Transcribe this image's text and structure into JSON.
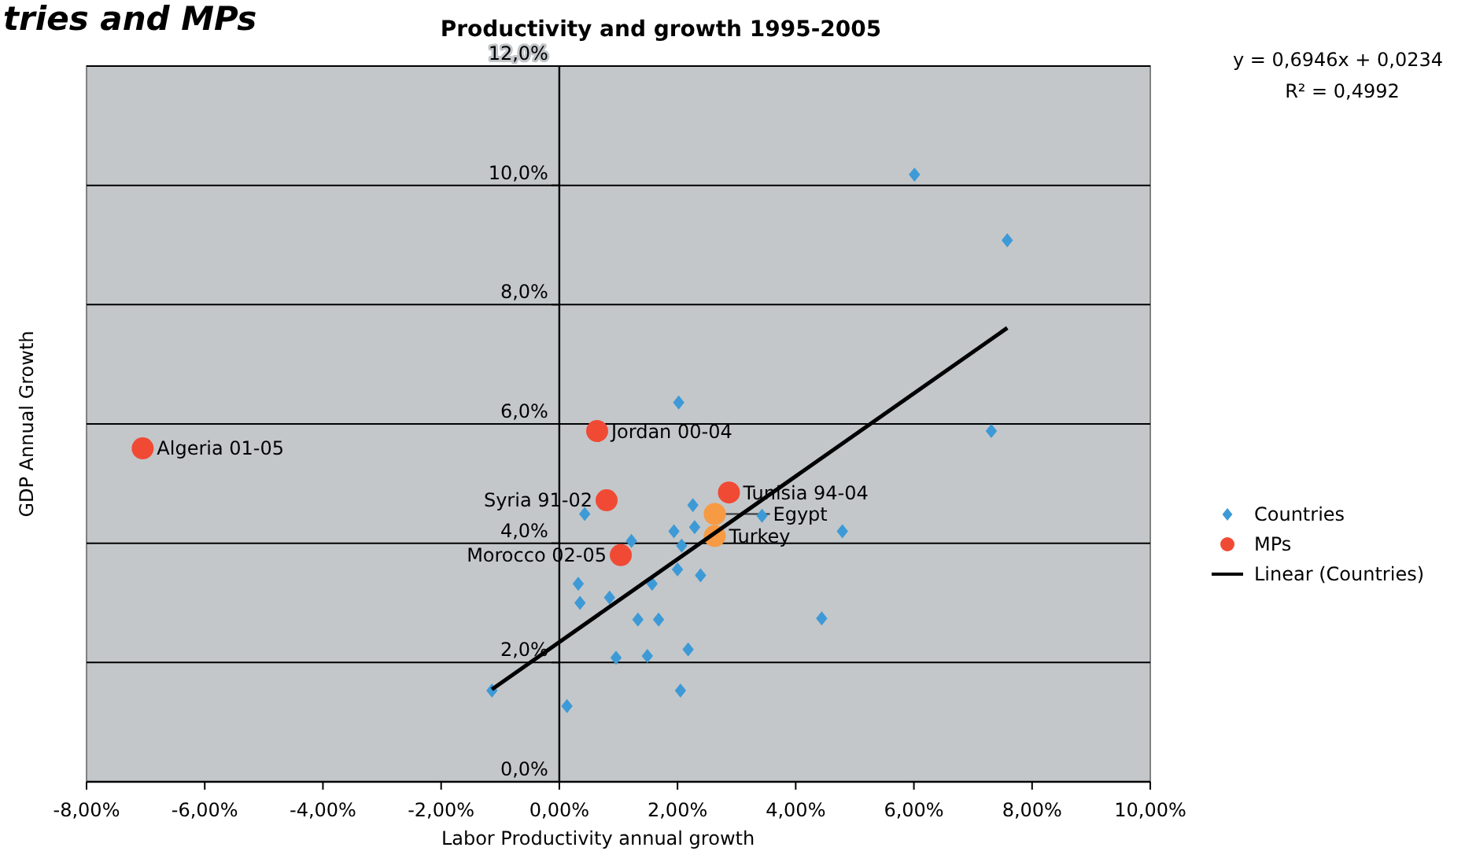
{
  "chart_data": {
    "type": "scatter",
    "title": "Productivity and growth 1995-2005",
    "xlabel": "Labor Productivity annual growth",
    "ylabel": "GDP Annual Growth",
    "xlim": [
      -8,
      10
    ],
    "ylim": [
      0,
      12
    ],
    "xticks": [
      {
        "value": -8,
        "label": "-8,00%"
      },
      {
        "value": -6,
        "label": "-6,00%"
      },
      {
        "value": -4,
        "label": "-4,00%"
      },
      {
        "value": -2,
        "label": "-2,00%"
      },
      {
        "value": 0,
        "label": "0,00%"
      },
      {
        "value": 2,
        "label": "2,00%"
      },
      {
        "value": 4,
        "label": "4,00%"
      },
      {
        "value": 6,
        "label": "6,00%"
      },
      {
        "value": 8,
        "label": "8,00%"
      },
      {
        "value": 10,
        "label": "10,00%"
      }
    ],
    "yticks": [
      {
        "value": 0,
        "label": "0,0%"
      },
      {
        "value": 2,
        "label": "2,0%"
      },
      {
        "value": 4,
        "label": "4,0%"
      },
      {
        "value": 6,
        "label": "6,0%"
      },
      {
        "value": 8,
        "label": "8,0%"
      },
      {
        "value": 10,
        "label": "10,0%"
      },
      {
        "value": 12,
        "label": "12,0%"
      }
    ],
    "grid": "y",
    "legend": "right",
    "series": [
      {
        "name": "Countries",
        "marker": "diamond",
        "color": "#3d9ad6",
        "x": [
          2.02,
          0.43,
          2.26,
          3.43,
          1.94,
          2.29,
          4.79,
          1.22,
          2.07,
          2.0,
          2.39,
          0.32,
          1.57,
          0.35,
          0.85,
          1.33,
          1.68,
          4.44,
          0.96,
          1.49,
          2.18,
          -1.14,
          2.05,
          0.13,
          6.01,
          7.58,
          7.31
        ],
        "values": [
          6.36,
          4.49,
          4.64,
          4.46,
          4.2,
          4.27,
          4.2,
          4.04,
          3.96,
          3.56,
          3.46,
          3.32,
          3.32,
          3.0,
          3.09,
          2.72,
          2.72,
          2.74,
          2.08,
          2.11,
          2.22,
          1.53,
          1.53,
          1.27,
          10.18,
          9.08,
          5.88
        ]
      },
      {
        "name": "MPs",
        "marker": "circle",
        "color": "#f04a35",
        "colors": [
          "#f04a35",
          "#f04a35",
          "#f04a35",
          "#f79a44",
          "#f79a44",
          "#f04a35",
          "#f04a35"
        ],
        "x": [
          0.64,
          0.8,
          2.87,
          2.63,
          2.63,
          1.04,
          -7.05
        ],
        "values": [
          5.88,
          4.72,
          4.85,
          4.49,
          4.12,
          3.8,
          5.59
        ]
      },
      {
        "name": "Linear (Countries)",
        "type": "line",
        "marker": "none",
        "color": "#000000",
        "x": [
          -1.14,
          7.58
        ],
        "values": [
          1.55,
          7.61
        ]
      }
    ],
    "annotations": [
      "tries and MPs",
      "y = 0,6946x + 0,0234",
      "R² = 0,4992",
      {
        "text": "Jordan 00-04",
        "x": 0.64,
        "y": 5.88
      },
      {
        "text": "Syria 91-02",
        "x": 0.8,
        "y": 4.72
      },
      {
        "text": "Tunisia 94-04",
        "x": 2.87,
        "y": 4.85
      },
      {
        "text": "Egypt",
        "x": 2.63,
        "y": 4.49
      },
      {
        "text": "Turkey",
        "x": 2.63,
        "y": 4.12
      },
      {
        "text": "Morocco 02-05",
        "x": 1.04,
        "y": 3.8
      },
      {
        "text": "Algeria 01-05",
        "x": -7.05,
        "y": 5.59
      }
    ]
  }
}
